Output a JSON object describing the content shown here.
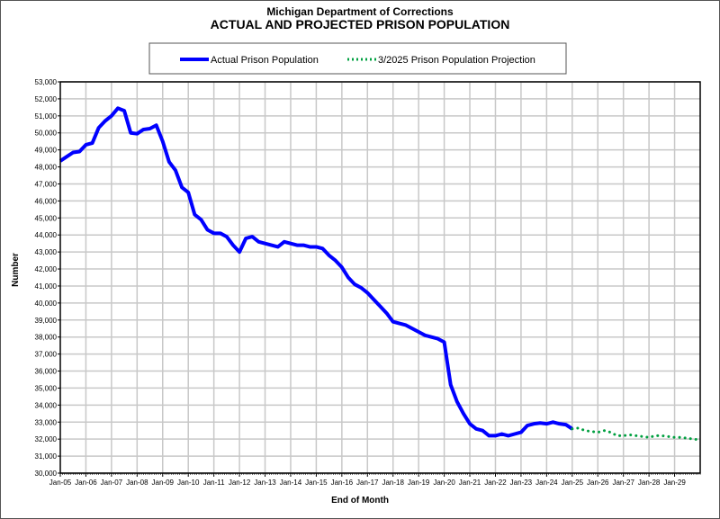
{
  "chart_data": {
    "type": "line",
    "title": "Michigan Department of Corrections",
    "subtitle": "ACTUAL AND PROJECTED PRISON POPULATION",
    "xlabel": "End of Month",
    "ylabel": "Number",
    "ylim": [
      30000,
      53000
    ],
    "xlim": [
      2005,
      2030
    ],
    "grid": true,
    "legend_placement": "top-center",
    "y_ticks": [
      "30,000",
      "31,000",
      "32,000",
      "33,000",
      "34,000",
      "35,000",
      "36,000",
      "37,000",
      "38,000",
      "39,000",
      "40,000",
      "41,000",
      "42,000",
      "43,000",
      "44,000",
      "45,000",
      "46,000",
      "47,000",
      "48,000",
      "49,000",
      "50,000",
      "51,000",
      "52,000",
      "53,000"
    ],
    "x_ticks": [
      "Jan-05",
      "Jan-06",
      "Jan-07",
      "Jan-08",
      "Jan-09",
      "Jan-10",
      "Jan-11",
      "Jan-12",
      "Jan-13",
      "Jan-14",
      "Jan-15",
      "Jan-16",
      "Jan-17",
      "Jan-18",
      "Jan-19",
      "Jan-20",
      "Jan-21",
      "Jan-22",
      "Jan-23",
      "Jan-24",
      "Jan-25",
      "Jan-26",
      "Jan-27",
      "Jan-28",
      "Jan-29"
    ],
    "series": [
      {
        "name": "Actual Prison Population",
        "color": "#0000ff",
        "style": "solid",
        "x_start": 2005,
        "x_step": 0.25,
        "values": [
          48350,
          48600,
          48850,
          48900,
          49300,
          49400,
          50300,
          50700,
          51000,
          51450,
          51300,
          50000,
          49950,
          50200,
          50250,
          50450,
          49500,
          48300,
          47800,
          46800,
          46500,
          45200,
          44900,
          44300,
          44100,
          44100,
          43900,
          43400,
          43000,
          43800,
          43900,
          43600,
          43500,
          43400,
          43300,
          43600,
          43500,
          43400,
          43400,
          43300,
          43300,
          43200,
          42800,
          42500,
          42100,
          41500,
          41100,
          40900,
          40600,
          40200,
          39800,
          39400,
          38900,
          38800,
          38700,
          38500,
          38300,
          38100,
          38000,
          37900,
          37700,
          35200,
          34200,
          33500,
          32900,
          32600,
          32500,
          32200,
          32200,
          32300,
          32200,
          32300,
          32400,
          32800,
          32900,
          32950,
          32900,
          33000,
          32900,
          32850,
          32600
        ]
      },
      {
        "name": "3/2025 Prison Population Projection",
        "color": "#00a040",
        "style": "dotted",
        "x_start": 2025,
        "x_step": 0.25,
        "values": [
          32600,
          32650,
          32500,
          32450,
          32400,
          32500,
          32400,
          32200,
          32200,
          32250,
          32200,
          32150,
          32100,
          32200,
          32200,
          32150,
          32100,
          32100,
          32050,
          32000,
          31950
        ]
      }
    ]
  }
}
